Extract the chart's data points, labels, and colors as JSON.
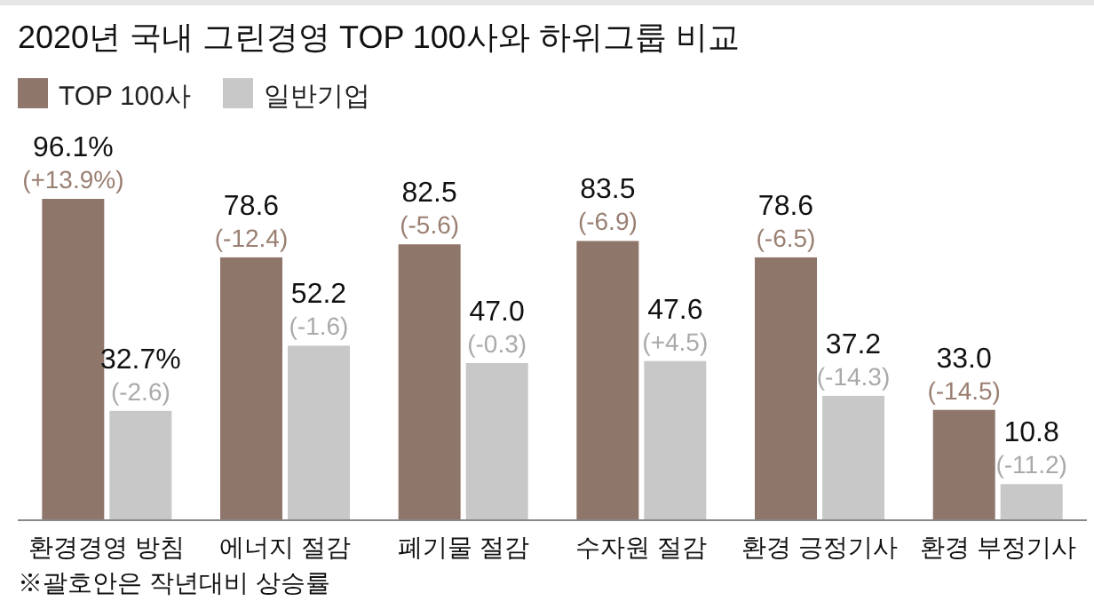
{
  "chart_data": {
    "type": "bar",
    "title": "2020년 국내 그린경영 TOP 100사와 하위그룹 비교",
    "categories": [
      "환경경영 방침",
      "에너지 절감",
      "폐기물 절감",
      "수자원 절감",
      "환경 긍정기사",
      "환경 부정기사"
    ],
    "series": [
      {
        "name": "TOP 100사",
        "color": "#8f766a",
        "values": [
          96.1,
          78.6,
          82.5,
          83.5,
          78.6,
          33.0
        ],
        "value_labels": [
          "96.1%",
          "78.6",
          "82.5",
          "83.5",
          "78.6",
          "33.0"
        ]
      },
      {
        "name": "일반기업",
        "color": "#c8c8c8",
        "values": [
          32.7,
          52.2,
          47.0,
          47.6,
          37.2,
          10.8
        ],
        "value_labels": [
          "32.7%",
          "52.2",
          "47.0",
          "47.6",
          "37.2",
          "10.8"
        ]
      }
    ],
    "legend": "top left",
    "annotations": [
      {
        "text": "(+13.9%)",
        "x": "환경경영 방침",
        "y": 96.1
      },
      {
        "text": "(-2.6)",
        "x": "환경경영 방침",
        "y": 32.7
      },
      {
        "text": "(-12.4)",
        "x": "에너지 절감",
        "y": 78.6
      },
      {
        "text": "(-1.6)",
        "x": "에너지 절감",
        "y": 52.2
      },
      {
        "text": "(-5.6)",
        "x": "폐기물 절감",
        "y": 82.5
      },
      {
        "text": "(-0.3)",
        "x": "폐기물 절감",
        "y": 47.0
      },
      {
        "text": "(-6.9)",
        "x": "수자원 절감",
        "y": 83.5
      },
      {
        "text": "(+4.5)",
        "x": "수자원 절감",
        "y": 47.6
      },
      {
        "text": "(-6.5)",
        "x": "환경 긍정기사",
        "y": 78.6
      },
      {
        "text": "(-14.3)",
        "x": "환경 긍정기사",
        "y": 37.2
      },
      {
        "text": "(-14.5)",
        "x": "환경 부정기사",
        "y": 33.0
      },
      {
        "text": "(-11.2)",
        "x": "환경 부정기사",
        "y": 10.8
      },
      "※괄호안은 작년대비 상승률"
    ]
  }
}
